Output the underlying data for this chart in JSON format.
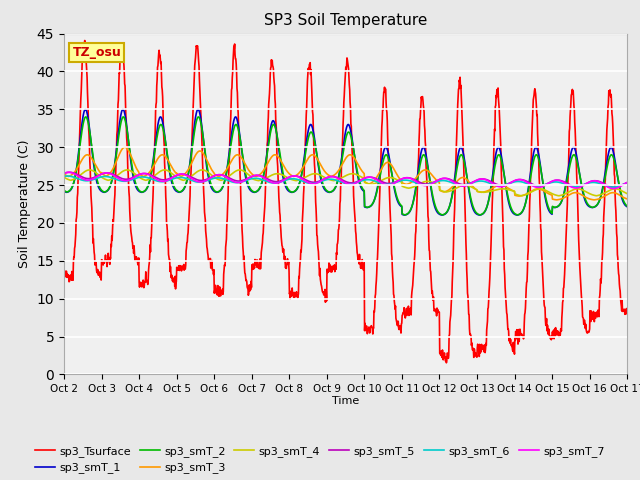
{
  "title": "SP3 Soil Temperature",
  "ylabel": "Soil Temperature (C)",
  "xlabel": "Time",
  "annotation": "TZ_osu",
  "annotation_color": "#CC0000",
  "annotation_bg": "#FFFF99",
  "annotation_edge": "#CCAA00",
  "ylim": [
    0,
    45
  ],
  "yticks": [
    0,
    5,
    10,
    15,
    20,
    25,
    30,
    35,
    40,
    45
  ],
  "xtick_labels": [
    "Oct 2",
    "Oct 3",
    "Oct 4",
    "Oct 5",
    "Oct 6",
    "Oct 7",
    "Oct 8",
    "Oct 9",
    "Oct 10",
    "Oct 11",
    "Oct 12",
    "Oct 13",
    "Oct 14",
    "Oct 15",
    "Oct 16",
    "Oct 17"
  ],
  "series_order": [
    "sp3_Tsurface",
    "sp3_smT_1",
    "sp3_smT_2",
    "sp3_smT_3",
    "sp3_smT_4",
    "sp3_smT_5",
    "sp3_smT_6",
    "sp3_smT_7"
  ],
  "colors": {
    "sp3_Tsurface": "#FF0000",
    "sp3_smT_1": "#0000CC",
    "sp3_smT_2": "#00BB00",
    "sp3_smT_3": "#FF9900",
    "sp3_smT_4": "#CCCC00",
    "sp3_smT_5": "#BB00BB",
    "sp3_smT_6": "#00CCCC",
    "sp3_smT_7": "#FF00FF"
  },
  "lw": 1.2,
  "bg_color": "#E8E8E8",
  "plot_bg": "#F0F0F0",
  "grid_color": "#FFFFFF"
}
